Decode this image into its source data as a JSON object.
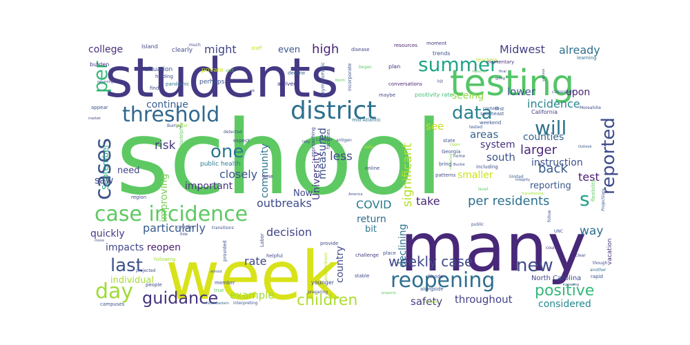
{
  "words": [
    {
      "text": "school",
      "color": "#5ec962",
      "weight": 100
    },
    {
      "text": "many",
      "color": "#482878",
      "weight": 72
    },
    {
      "text": "week",
      "color": "#d8e219",
      "weight": 70
    },
    {
      "text": "students",
      "color": "#443983",
      "weight": 62
    },
    {
      "text": "testing",
      "color": "#54c568",
      "weight": 42
    },
    {
      "text": "district",
      "color": "#2d708e",
      "weight": 30
    },
    {
      "text": "threshold",
      "color": "#31688e",
      "weight": 28
    },
    {
      "text": "case incidence",
      "color": "#5ec962",
      "weight": 27
    },
    {
      "text": "reopening",
      "color": "#2e6e8e",
      "weight": 27
    },
    {
      "text": "cases",
      "color": "#3b528b",
      "weight": 27
    },
    {
      "text": "summer",
      "color": "#20a486",
      "weight": 22
    },
    {
      "text": "day",
      "color": "#a0da39",
      "weight": 22
    },
    {
      "text": "will",
      "color": "#2c728e",
      "weight": 21
    },
    {
      "text": "per",
      "color": "#35b779",
      "weight": 21
    },
    {
      "text": "reported",
      "color": "#3e4a89",
      "weight": 21
    },
    {
      "text": "data",
      "color": "#26828e",
      "weight": 19
    },
    {
      "text": "one",
      "color": "#2a788e",
      "weight": 19
    },
    {
      "text": "last",
      "color": "#3b528b",
      "weight": 19
    },
    {
      "text": "new",
      "color": "#3e4989",
      "weight": 19
    },
    {
      "text": "s",
      "color": "#1fa187",
      "weight": 19
    },
    {
      "text": "guidance",
      "color": "#46337e",
      "weight": 18
    },
    {
      "text": "positive",
      "color": "#35b779",
      "weight": 18
    },
    {
      "text": "children",
      "color": "#addc30",
      "weight": 17
    },
    {
      "text": "weekly case",
      "color": "#3f4788",
      "weight": 16
    },
    {
      "text": "per residents",
      "color": "#2d708e",
      "weight": 15
    },
    {
      "text": "significant",
      "color": "#b5de2b",
      "weight": 15
    },
    {
      "text": "incidence",
      "color": "#25858e",
      "weight": 13
    },
    {
      "text": "high",
      "color": "#482475",
      "weight": 13
    },
    {
      "text": "might",
      "color": "#414487",
      "weight": 13
    },
    {
      "text": "Midwest",
      "color": "#433e85",
      "weight": 12
    },
    {
      "text": "already",
      "color": "#2e6f8e",
      "weight": 12
    },
    {
      "text": "college",
      "color": "#472d7b",
      "weight": 12
    },
    {
      "text": "seeing",
      "color": "#90d743",
      "weight": 12
    },
    {
      "text": "continue",
      "color": "#355f8d",
      "weight": 12
    },
    {
      "text": "lower",
      "color": "#39558c",
      "weight": 12
    },
    {
      "text": "upon",
      "color": "#482173",
      "weight": 12
    },
    {
      "text": "risk",
      "color": "#453781",
      "weight": 13
    },
    {
      "text": "less",
      "color": "#3e4a89",
      "weight": 13
    },
    {
      "text": "measured",
      "color": "#3c4f8a",
      "weight": 12
    },
    {
      "text": "see",
      "color": "#c0df25",
      "weight": 12
    },
    {
      "text": "larger",
      "color": "#482576",
      "weight": 13
    },
    {
      "text": "areas",
      "color": "#34618d",
      "weight": 12
    },
    {
      "text": "counties",
      "color": "#34618d",
      "weight": 11
    },
    {
      "text": "system",
      "color": "#46327e",
      "weight": 11
    },
    {
      "text": "south",
      "color": "#3b518b",
      "weight": 12
    },
    {
      "text": "instruction",
      "color": "#3c4f8a",
      "weight": 11
    },
    {
      "text": "back",
      "color": "#38598c",
      "weight": 13
    },
    {
      "text": "test",
      "color": "#481c6e",
      "weight": 13
    },
    {
      "text": "smaller",
      "color": "#cde11d",
      "weight": 11
    },
    {
      "text": "reporting",
      "color": "#39568c",
      "weight": 11
    },
    {
      "text": "community",
      "color": "#2c728e",
      "weight": 11
    },
    {
      "text": "University",
      "color": "#453882",
      "weight": 12
    },
    {
      "text": "September",
      "color": "#22a884",
      "weight": 11
    },
    {
      "text": "closely",
      "color": "#3b528b",
      "weight": 12
    },
    {
      "text": "need",
      "color": "#414487",
      "weight": 10
    },
    {
      "text": "saw",
      "color": "#3e4989",
      "weight": 11
    },
    {
      "text": "improving",
      "color": "#75d054",
      "weight": 11
    },
    {
      "text": "important",
      "color": "#46307e",
      "weight": 11
    },
    {
      "text": "public health",
      "color": "#287d8e",
      "weight": 8
    },
    {
      "text": "Now",
      "color": "#3e4989",
      "weight": 11
    },
    {
      "text": "outbreaks",
      "color": "#3e4a89",
      "weight": 13
    },
    {
      "text": "COVID",
      "color": "#2a788e",
      "weight": 13
    },
    {
      "text": "take",
      "color": "#482576",
      "weight": 13
    },
    {
      "text": "particularly",
      "color": "#38598c",
      "weight": 13
    },
    {
      "text": "decision",
      "color": "#404588",
      "weight": 13
    },
    {
      "text": "return",
      "color": "#31688e",
      "weight": 11
    },
    {
      "text": "bit",
      "color": "#2a788e",
      "weight": 11
    },
    {
      "text": "quickly",
      "color": "#453781",
      "weight": 11
    },
    {
      "text": "reopen",
      "color": "#481f70",
      "weight": 12
    },
    {
      "text": "impacts",
      "color": "#3f4788",
      "weight": 12
    },
    {
      "text": "rate",
      "color": "#3f4788",
      "weight": 12
    },
    {
      "text": "country",
      "color": "#3e4a89",
      "weight": 11
    },
    {
      "text": "declining",
      "color": "#2c728e",
      "weight": 11
    },
    {
      "text": "way",
      "color": "#2e6e8e",
      "weight": 12
    },
    {
      "text": "considered",
      "color": "#23898e",
      "weight": 12
    },
    {
      "text": "throughout",
      "color": "#424186",
      "weight": 12
    },
    {
      "text": "safety",
      "color": "#433e85",
      "weight": 13
    },
    {
      "text": "example",
      "color": "#a2da37",
      "weight": 12
    },
    {
      "text": "individual",
      "color": "#a8db34",
      "weight": 11
    },
    {
      "text": "even",
      "color": "#39558c",
      "weight": 11
    },
    {
      "text": "North Carolina",
      "color": "#3f4889",
      "weight": 8
    },
    {
      "text": "vacation",
      "color": "#46307e",
      "weight": 7
    },
    {
      "text": "positivity rate",
      "color": "#3fbc73",
      "weight": 6
    },
    {
      "text": "mid Atlantic",
      "color": "#2c728e",
      "weight": 6
    },
    {
      "text": "conversations",
      "color": "#482374",
      "weight": 6
    },
    {
      "text": "resources",
      "color": "#481c6e",
      "weight": 5
    },
    {
      "text": "California",
      "color": "#433d84",
      "weight": 6
    },
    {
      "text": "Georgia",
      "color": "#3e4c8a",
      "weight": 5
    },
    {
      "text": "Philadelphia",
      "color": "#65cb5e",
      "weight": 5
    },
    {
      "text": "asymptomatic",
      "color": "#365c8d",
      "weight": 6
    },
    {
      "text": "incorporate",
      "color": "#3b528b",
      "weight": 5
    },
    {
      "text": "elementary",
      "color": "#46317e",
      "weight": 5
    },
    {
      "text": "classroom",
      "color": "#38598c",
      "weight": 5
    },
    {
      "text": "Projections",
      "color": "#38598c",
      "weight": 5
    },
    {
      "text": "preparedness",
      "color": "#b5de2b",
      "weight": 5
    },
    {
      "text": "interpreting",
      "color": "#3b528b",
      "weight": 5
    },
    {
      "text": "Northeastern",
      "color": "#31688e",
      "weight": 4
    },
    {
      "text": "transitions",
      "color": "#3b528b",
      "weight": 5
    },
    {
      "text": "alongside",
      "color": "#3b528b",
      "weight": 5
    },
    {
      "text": "challenge",
      "color": "#453781",
      "weight": 5
    },
    {
      "text": "flexibility",
      "color": "#5ec962",
      "weight": 5
    },
    {
      "text": "integrity",
      "color": "#3e4c8a",
      "weight": 4
    },
    {
      "text": "patterns",
      "color": "#3e4a89",
      "weight": 5
    },
    {
      "text": "facilities",
      "color": "#3e4a89",
      "weight": 5
    },
    {
      "text": "approaching",
      "color": "#3e4a89",
      "weight": 5
    },
    {
      "text": "modeling",
      "color": "#7ad151",
      "weight": 4
    },
    {
      "text": "including",
      "color": "#3b528b",
      "weight": 5
    },
    {
      "text": "transitioning",
      "color": "#a0da39",
      "weight": 4
    },
    {
      "text": "southeast",
      "color": "#39558c",
      "weight": 5
    },
    {
      "text": "weekend",
      "color": "#3b528b",
      "weight": 5
    },
    {
      "text": "Bumpy",
      "color": "#3e4989",
      "weight": 5
    },
    {
      "text": "better",
      "color": "#a0da39",
      "weight": 5
    },
    {
      "text": "situation",
      "color": "#3b528b",
      "weight": 6
    },
    {
      "text": "pandemic",
      "color": "#2c728e",
      "weight": 5
    },
    {
      "text": "holding",
      "color": "#3e4989",
      "weight": 5
    },
    {
      "text": "burden",
      "color": "#46307e",
      "weight": 5
    },
    {
      "text": "clearly",
      "color": "#3e4a89",
      "weight": 6
    },
    {
      "text": "private",
      "color": "#c8e020",
      "weight": 6
    },
    {
      "text": "perhaps",
      "color": "#3b528b",
      "weight": 6
    },
    {
      "text": "decline",
      "color": "#34618d",
      "weight": 6
    },
    {
      "text": "arrived",
      "color": "#46307e",
      "weight": 6
    },
    {
      "text": "disease",
      "color": "#3f4889",
      "weight": 6
    },
    {
      "text": "moment",
      "color": "#453781",
      "weight": 5
    },
    {
      "text": "trends",
      "color": "#3b528b",
      "weight": 6
    },
    {
      "text": "teachers",
      "color": "#b5de2b",
      "weight": 5
    },
    {
      "text": "learning",
      "color": "#2c728e",
      "weight": 5
    },
    {
      "text": "plan",
      "color": "#46307e",
      "weight": 6
    },
    {
      "text": "hit",
      "color": "#3e4989",
      "weight": 5
    },
    {
      "text": "context",
      "color": "#3b528b",
      "weight": 5
    },
    {
      "text": "first",
      "color": "#3b528b",
      "weight": 5
    },
    {
      "text": "tested",
      "color": "#38598c",
      "weight": 5
    },
    {
      "text": "state",
      "color": "#3b528b",
      "weight": 5
    },
    {
      "text": "home",
      "color": "#38598c",
      "weight": 5
    },
    {
      "text": "bring",
      "color": "#3e4989",
      "weight": 5
    },
    {
      "text": "Buckle",
      "color": "#3e4c8a",
      "weight": 4
    },
    {
      "text": "Upper",
      "color": "#a0da39",
      "weight": 4
    },
    {
      "text": "limited",
      "color": "#34618d",
      "weight": 5
    },
    {
      "text": "level",
      "color": "#5ec962",
      "weight": 5
    },
    {
      "text": "online",
      "color": "#3e4989",
      "weight": 5
    },
    {
      "text": "safe",
      "color": "#c8e020",
      "weight": 5
    },
    {
      "text": "time",
      "color": "#46307e",
      "weight": 5
    },
    {
      "text": "provided",
      "color": "#3b528b",
      "weight": 5
    },
    {
      "text": "Labor",
      "color": "#3e4989",
      "weight": 5
    },
    {
      "text": "America",
      "color": "#3b528b",
      "weight": 4
    },
    {
      "text": "stable",
      "color": "#3e4989",
      "weight": 5
    },
    {
      "text": "Rhode",
      "color": "#3e4989",
      "weight": 5
    },
    {
      "text": "public",
      "color": "#3b528b",
      "weight": 5
    },
    {
      "text": "UNC",
      "color": "#3b528b",
      "weight": 5
    },
    {
      "text": "follow",
      "color": "#3b528b",
      "weight": 5
    },
    {
      "text": "counts",
      "color": "#46307e",
      "weight": 5
    },
    {
      "text": "clear",
      "color": "#3e4989",
      "weight": 5
    },
    {
      "text": "though",
      "color": "#3e4989",
      "weight": 5
    },
    {
      "text": "another",
      "color": "#2c728e",
      "weight": 5
    },
    {
      "text": "growing",
      "color": "#3e4989",
      "weight": 4
    },
    {
      "text": "rapid",
      "color": "#3b528b",
      "weight": 5
    },
    {
      "text": "place",
      "color": "#3e4c8a",
      "weight": 5
    },
    {
      "text": "provide",
      "color": "#3e4989",
      "weight": 5
    },
    {
      "text": "helpful",
      "color": "#3e4989",
      "weight": 5
    },
    {
      "text": "younger",
      "color": "#3e4989",
      "weight": 6
    },
    {
      "text": "preparing",
      "color": "#3e4989",
      "weight": 5
    },
    {
      "text": "properly",
      "color": "#5ec962",
      "weight": 4
    },
    {
      "text": "threaten",
      "color": "#a0da39",
      "weight": 4
    },
    {
      "text": "member",
      "color": "#3e4989",
      "weight": 5
    },
    {
      "text": "true",
      "color": "#5ec962",
      "weight": 5
    },
    {
      "text": "almost",
      "color": "#3b528b",
      "weight": 4
    },
    {
      "text": "following",
      "color": "#a0da39",
      "weight": 5
    },
    {
      "text": "projected",
      "color": "#3e4989",
      "weight": 5
    },
    {
      "text": "region",
      "color": "#3e4989",
      "weight": 5
    },
    {
      "text": "couple",
      "color": "#3e4989",
      "weight": 5
    },
    {
      "text": "Ride",
      "color": "#3e4c8a",
      "weight": 4
    },
    {
      "text": "move",
      "color": "#3b528b",
      "weight": 4
    },
    {
      "text": "people",
      "color": "#3e4989",
      "weight": 5
    },
    {
      "text": "campuses",
      "color": "#3b528b",
      "weight": 5
    },
    {
      "text": "expect",
      "color": "#3e4989",
      "weight": 5
    },
    {
      "text": "detected",
      "color": "#3b528b",
      "weight": 4
    },
    {
      "text": "rely",
      "color": "#3e4989",
      "weight": 4
    },
    {
      "text": "campus",
      "color": "#3e4989",
      "weight": 4
    },
    {
      "text": "antigen",
      "color": "#3b528b",
      "weight": 4
    },
    {
      "text": "much",
      "color": "#3e4989",
      "weight": 4
    },
    {
      "text": "staff",
      "color": "#c8e020",
      "weight": 5
    },
    {
      "text": "Island",
      "color": "#3e4989",
      "weight": 5
    },
    {
      "text": "sort",
      "color": "#5ec962",
      "weight": 4
    },
    {
      "text": "began",
      "color": "#5ec962",
      "weight": 4
    },
    {
      "text": "North",
      "color": "#5ec962",
      "weight": 4
    },
    {
      "text": "maybe",
      "color": "#3e4989",
      "weight": 5
    },
    {
      "text": "find",
      "color": "#3e4989",
      "weight": 5
    },
    {
      "text": "returning",
      "color": "#3e4989",
      "weight": 4
    },
    {
      "text": "appear",
      "color": "#3b528b",
      "weight": 5
    },
    {
      "text": "market",
      "color": "#3e4989",
      "weight": 4
    },
    {
      "text": "us",
      "color": "#3e4989",
      "weight": 4
    },
    {
      "text": "final",
      "color": "#3e4989",
      "weight": 4
    },
    {
      "text": "going",
      "color": "#3e4989",
      "weight": 4
    },
    {
      "text": "Moreahilie",
      "color": "#3e4989",
      "weight": 4
    },
    {
      "text": "Outlook",
      "color": "#3b528b",
      "weight": 4
    },
    {
      "text": "reasons",
      "color": "#5ec962",
      "weight": 4
    },
    {
      "text": "various",
      "color": "#3e4989",
      "weight": 4
    }
  ]
}
